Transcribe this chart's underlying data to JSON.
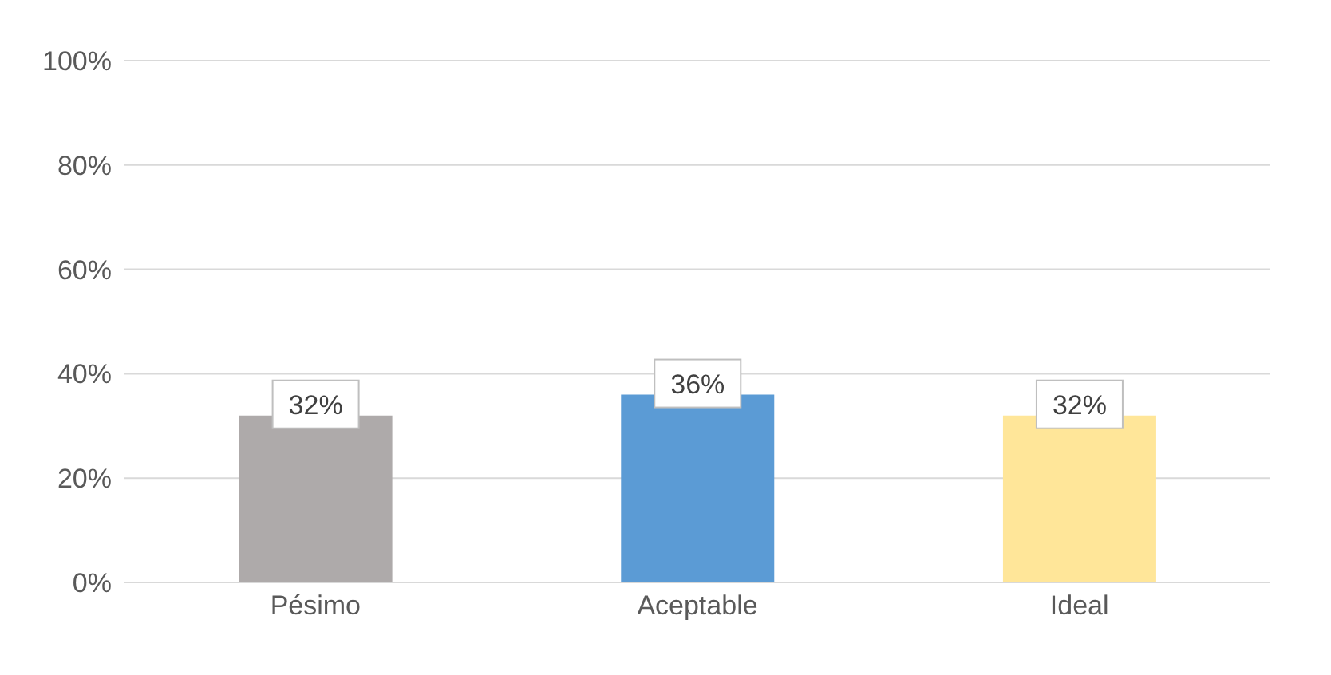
{
  "chart_data": {
    "type": "bar",
    "categories": [
      "Pésimo",
      "Aceptable",
      "Ideal"
    ],
    "values": [
      32,
      36,
      32
    ],
    "colors": [
      "#aeaaaa",
      "#5b9bd5",
      "#ffe699"
    ],
    "value_labels": [
      "32%",
      "36%",
      "32%"
    ],
    "ylim": [
      0,
      100
    ],
    "yticks": [
      {
        "value": 0,
        "label": "0%"
      },
      {
        "value": 20,
        "label": "20%"
      },
      {
        "value": 40,
        "label": "40%"
      },
      {
        "value": 60,
        "label": "60%"
      },
      {
        "value": 80,
        "label": "80%"
      },
      {
        "value": 100,
        "label": "100%"
      }
    ],
    "grid": "y"
  }
}
